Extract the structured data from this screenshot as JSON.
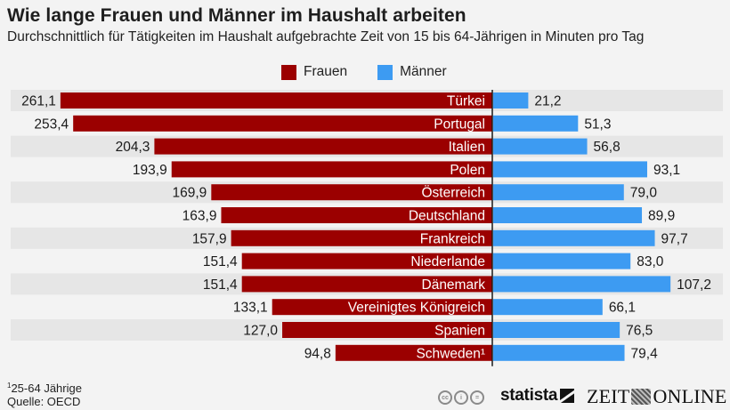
{
  "header": {
    "title": "Wie lange Frauen und Männer im Haushalt arbeiten",
    "subtitle": "Durchschnittlich für Tätigkeiten im Haushalt aufgebrachte Zeit von 15 bis 64-Jährigen in Minuten pro Tag"
  },
  "legend": [
    {
      "label": "Frauen",
      "color": "#9b0000"
    },
    {
      "label": "Männer",
      "color": "#3d9bf2"
    }
  ],
  "chart_data": {
    "type": "bar",
    "orientation": "horizontal-diverging",
    "title": "Wie lange Frauen und Männer im Haushalt arbeiten",
    "subtitle": "Durchschnittlich für Tätigkeiten im Haushalt aufgebrachte Zeit von 15 bis 64-Jährigen in Minuten pro Tag",
    "xlabel": "",
    "ylabel": "",
    "unit": "Minuten pro Tag",
    "legend_position": "top-center",
    "grid": false,
    "categories": [
      "Türkei",
      "Portugal",
      "Italien",
      "Polen",
      "Österreich",
      "Deutschland",
      "Frankreich",
      "Niederlande",
      "Dänemark",
      "Vereinigtes Königreich",
      "Spanien",
      "Schweden¹"
    ],
    "series": [
      {
        "name": "Frauen",
        "color": "#9b0000",
        "side": "left",
        "values": [
          261.1,
          253.4,
          204.3,
          193.9,
          169.9,
          163.9,
          157.9,
          151.4,
          151.4,
          133.1,
          127.0,
          94.8
        ],
        "labels": [
          "261,1",
          "253,4",
          "204,3",
          "193,9",
          "169,9",
          "163,9",
          "157,9",
          "151,4",
          "151,4",
          "133,1",
          "127,0",
          "94,8"
        ]
      },
      {
        "name": "Männer",
        "color": "#3d9bf2",
        "side": "right",
        "values": [
          21.2,
          51.3,
          56.8,
          93.1,
          79.0,
          89.9,
          97.7,
          83.0,
          107.2,
          66.1,
          76.5,
          79.4
        ],
        "labels": [
          "21,2",
          "51,3",
          "56,8",
          "93,1",
          "79,0",
          "89,9",
          "97,7",
          "83,0",
          "107,2",
          "66,1",
          "76,5",
          "79,4"
        ]
      }
    ]
  },
  "colors": {
    "background": "#f3f3f3",
    "row_alt": "#e6e6e6",
    "frauen": "#9b0000",
    "maenner": "#3d9bf2",
    "axis": "#1a1a1a"
  },
  "footer": {
    "footnote_marker": "1",
    "footnote_text": "25-64 Jährige",
    "source": "Quelle: OECD",
    "license_icons": [
      "cc-icon",
      "by-icon",
      "nd-icon"
    ],
    "license_glyphs": [
      "cc",
      "i",
      "="
    ],
    "brand_statista": "statista",
    "brand_zeit_left": "ZEIT",
    "brand_zeit_right": "ONLINE"
  }
}
